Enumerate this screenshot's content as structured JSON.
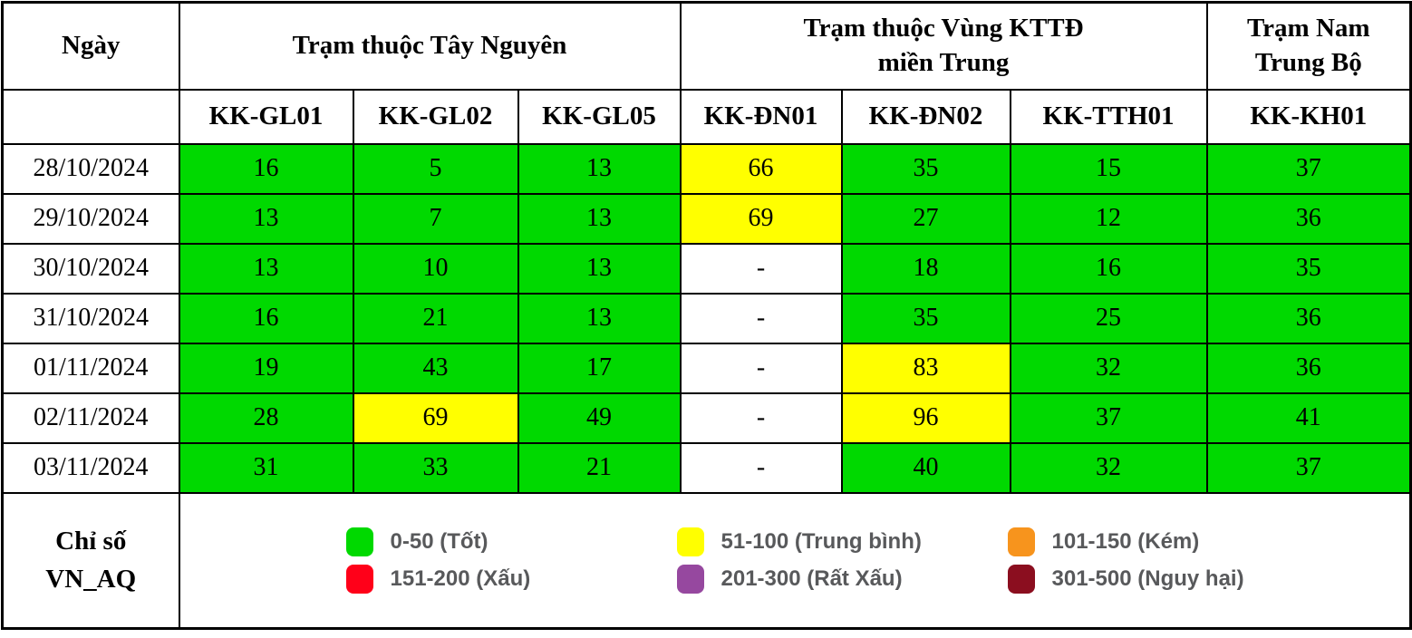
{
  "chart_data": {
    "type": "table",
    "header": {
      "date_col": "Ngày",
      "group1": {
        "line1": "Trạm thuộc Tây Nguyên",
        "line2": ""
      },
      "group2": {
        "line1": "Trạm thuộc Vùng KTTĐ",
        "line2": "miền Trung"
      },
      "group3": {
        "line1": "Trạm Nam",
        "line2": "Trung Bộ"
      }
    },
    "stations": [
      "KK-GL01",
      "KK-GL02",
      "KK-GL05",
      "KK-ĐN01",
      "KK-ĐN02",
      "KK-TTH01",
      "KK-KH01"
    ],
    "rows": [
      {
        "date": "28/10/2024",
        "values": [
          "16",
          "5",
          "13",
          "66",
          "35",
          "15",
          "37"
        ]
      },
      {
        "date": "29/10/2024",
        "values": [
          "13",
          "7",
          "13",
          "69",
          "27",
          "12",
          "36"
        ]
      },
      {
        "date": "30/10/2024",
        "values": [
          "13",
          "10",
          "13",
          "-",
          "18",
          "16",
          "35"
        ]
      },
      {
        "date": "31/10/2024",
        "values": [
          "16",
          "21",
          "13",
          "-",
          "35",
          "25",
          "36"
        ]
      },
      {
        "date": "01/11/2024",
        "values": [
          "19",
          "43",
          "17",
          "-",
          "83",
          "32",
          "36"
        ]
      },
      {
        "date": "02/11/2024",
        "values": [
          "28",
          "69",
          "49",
          "-",
          "96",
          "37",
          "41"
        ]
      },
      {
        "date": "03/11/2024",
        "values": [
          "31",
          "33",
          "21",
          "-",
          "40",
          "32",
          "37"
        ]
      }
    ],
    "missing_placeholder": "-",
    "cell_colors": {
      "good": "#00D900",
      "moderate": "#FFFF00",
      "missing": "#FFFFFF"
    },
    "legend_title_lines": [
      "Chỉ số",
      "VN_AQ"
    ],
    "legend_columns": [
      [
        {
          "label": "0-50 (Tốt)",
          "color": "#00D900",
          "min": 0,
          "max": 50
        },
        {
          "label": "151-200 (Xấu)",
          "color": "#FF0019",
          "min": 151,
          "max": 200
        }
      ],
      [
        {
          "label": "51-100 (Trung bình)",
          "color": "#FFFF00",
          "min": 51,
          "max": 100
        },
        {
          "label": "201-300 (Rất Xấu)",
          "color": "#96489F",
          "min": 201,
          "max": 300
        }
      ],
      [
        {
          "label": "101-150 (Kém)",
          "color": "#F7941D",
          "min": 101,
          "max": 150
        },
        {
          "label": "301-500 (Nguy hại)",
          "color": "#8B0E1F",
          "min": 301,
          "max": 500
        }
      ]
    ]
  }
}
